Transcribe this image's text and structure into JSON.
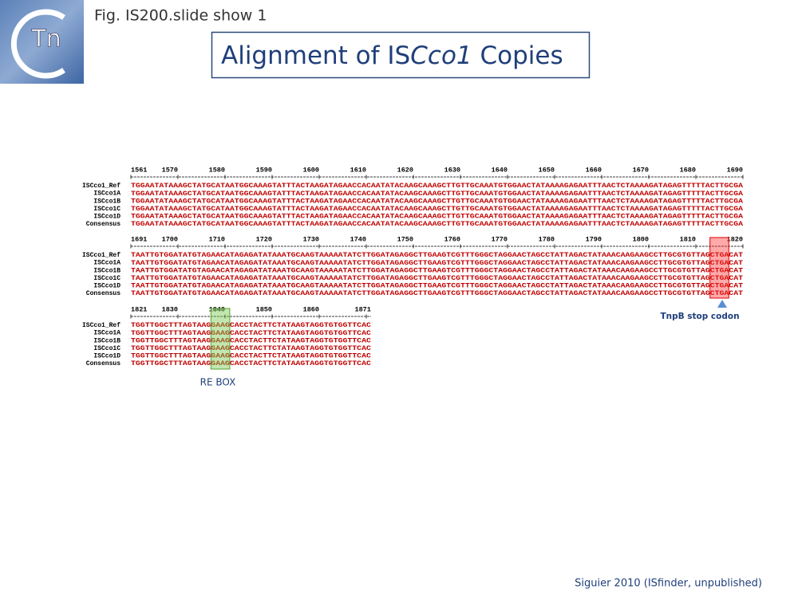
{
  "logo": {
    "text": "Tn"
  },
  "header": {
    "figure_label": "Fig. IS200.slide show 1",
    "title_parts": [
      "Alignment of IS",
      "Cco1",
      " Copies"
    ]
  },
  "alignment": {
    "row_names": [
      "ISCco1_Ref",
      "ISCco1A",
      "ISCco1B",
      "ISCco1C",
      "ISCco1D",
      "Consensus"
    ],
    "blocks": [
      {
        "ruler": [
          1561,
          1570,
          1580,
          1590,
          1600,
          1610,
          1620,
          1630,
          1640,
          1650,
          1660,
          1670,
          1680,
          1690
        ],
        "rows": [
          "TGGAATATAAAGCTATGCATAATGGCAAAGTATTTACTAAGATAGAACCACAATATACAAGCAAAGCTTGTTGCAAATGTGGAACTATAAAAGAGAATTTAACTCTAAAAGATAGAGTTTTTACTTGCGA",
          "TGGAATATAAAGCTATGCATAATGGCAAAGTATTTACTAAGATAGAACCACAATATACAAGCAAAGCTTGTTGCAAATGTGGAACTATAAAAGAGAATTTAACTCTAAAAGATAGAGTTTTTACTTGCGA",
          "TGGAATATAAAGCTATGCATAATGGCAAAGTATTTACTAAGATAGAACCACAATATACAAGCAAAGCTTGTTGCAAATGTGGAACTATAAAAGAGAATTTAACTCTAAAAGATAGAGTTTTTACTTGCGA",
          "TGGAATATAAAGCTATGCATAATGGCAAAGTATTTACTAAGATAGAACCACAATATACAAGCAAAGCTTGTTGCAAATGTGGAACTATAAAAGAGAATTTAACTCTAAAAGATAGAGTTTTTACTTGCGA",
          "TGGAATATAAAGCTATGCATAATGGCAAAGTATTTACTAAGATAGAACCACAATATACAAGCAAAGCTTGTTGCAAATGTGGAACTATAAAAGAGAATTTAACTCTAAAAGATAGAGTTTTTACTTGCGA",
          "TGGAATATAAAGCTATGCATAATGGCAAAGTATTTACTAAGATAGAACCACAATATACAAGCAAAGCTTGTTGCAAATGTGGAACTATAAAAGAGAATTTAACTCTAAAAGATAGAGTTTTTACTTGCGA"
        ]
      },
      {
        "ruler": [
          1691,
          1700,
          1710,
          1720,
          1730,
          1740,
          1750,
          1760,
          1770,
          1780,
          1790,
          1800,
          1810,
          1820
        ],
        "rows": [
          "TAATTGTGGATATGTAGAACATAGAGATATAAATGCAAGTAAAAATATCTTGGATAGAGGCTTGAAGTCGTTTGGGCTAGGAACTAGCCTATTAGACTATAAACAAGAAGCCTTGCGTGTTAGCTGACAT",
          "TAATTGTGGATATGTAGAACATAGAGATATAAATGCAAGTAAAAATATCTTGGATAGAGGCTTGAAGTCGTTTGGGCTAGGAACTAGCCTATTAGACTATAAACAAGAAGCCTTGCGTGTTAGCTGACAT",
          "TAATTGTGGATATGTAGAACATAGAGATATAAATGCAAGTAAAAATATCTTGGATAGAGGCTTGAAGTCGTTTGGGCTAGGAACTAGCCTATTAGACTATAAACAAGAAGCCTTGCGTGTTAGCTGACAT",
          "TAATTGTGGATATGTAGAACATAGAGATATAAATGCAAGTAAAAATATCTTGGATAGAGGCTTGAAGTCGTTTGGGCTAGGAACTAGCCTATTAGACTATAAACAAGAAGCCTTGCGTGTTAGCTGACAT",
          "TAATTGTGGATATGTAGAACATAGAGATATAAATGCAAGTAAAAATATCTTGGATAGAGGCTTGAAGTCGTTTGGGCTAGGAACTAGCCTATTAGACTATAAACAAGAAGCCTTGCGTGTTAGCTGACAT",
          "TAATTGTGGATATGTAGAACATAGAGATATAAATGCAAGTAAAAATATCTTGGATAGAGGCTTGAAGTCGTTTGGGCTAGGAACTAGCCTATTAGACTATAAACAAGAAGCCTTGCGTGTTAGCTGACAT"
        ]
      },
      {
        "ruler": [
          1821,
          1830,
          1840,
          1850,
          1860,
          1871
        ],
        "rows": [
          "TGGTTGGCTTTAGTAAGGAAGCACCTACTTCTATAAGTAGGTGTGGTTCAC",
          "TGGTTGGCTTTAGTAAGGAAGCACCTACTTCTATAAGTAGGTGTGGTTCAC",
          "TGGTTGGCTTTAGTAAGGAAGCACCTACTTCTATAAGTAGGTGTGGTTCAC",
          "TGGTTGGCTTTAGTAAGGAAGCACCTACTTCTATAAGTAGGTGTGGTTCAC",
          "TGGTTGGCTTTAGTAAGGAAGCACCTACTTCTATAAGTAGGTGTGGTTCAC",
          "TGGTTGGCTTTAGTAAGGAAGCACCTACTTCTATAAGTAGGTGTGGTTCAC"
        ]
      }
    ]
  },
  "annotations": {
    "stop_codon": "TnpB stop codon",
    "re_box": "RE BOX"
  },
  "footer": {
    "credit": "Siguier 2010 (ISfinder, unpublished)"
  }
}
